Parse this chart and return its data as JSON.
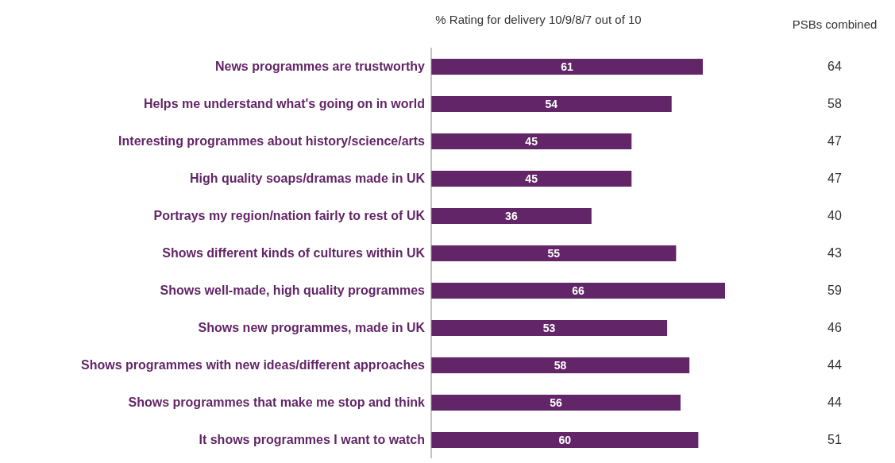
{
  "chart_data": {
    "type": "bar",
    "orientation": "horizontal",
    "title": "% Rating for delivery 10/9/8/7 out of 10",
    "categories": [
      "News programmes are trustworthy",
      "Helps me understand what's going on in world",
      "Interesting programmes about history/science/arts",
      "High quality soaps/dramas made in UK",
      "Portrays my region/nation fairly to rest of UK",
      "Shows different kinds of cultures within UK",
      "Shows well-made, high quality programmes",
      "Shows new programmes, made in UK",
      "Shows programmes with new ideas/different approaches",
      "Shows programmes that make me stop and think",
      "It shows programmes I want to watch"
    ],
    "values": [
      61,
      54,
      45,
      45,
      36,
      55,
      66,
      53,
      58,
      56,
      60
    ],
    "color": "#622567",
    "data_labels": true,
    "annotations": [
      "PSBs combined",
      "64",
      "58",
      "47",
      "47",
      "40",
      "43",
      "59",
      "46",
      "44",
      "44",
      "51"
    ]
  }
}
